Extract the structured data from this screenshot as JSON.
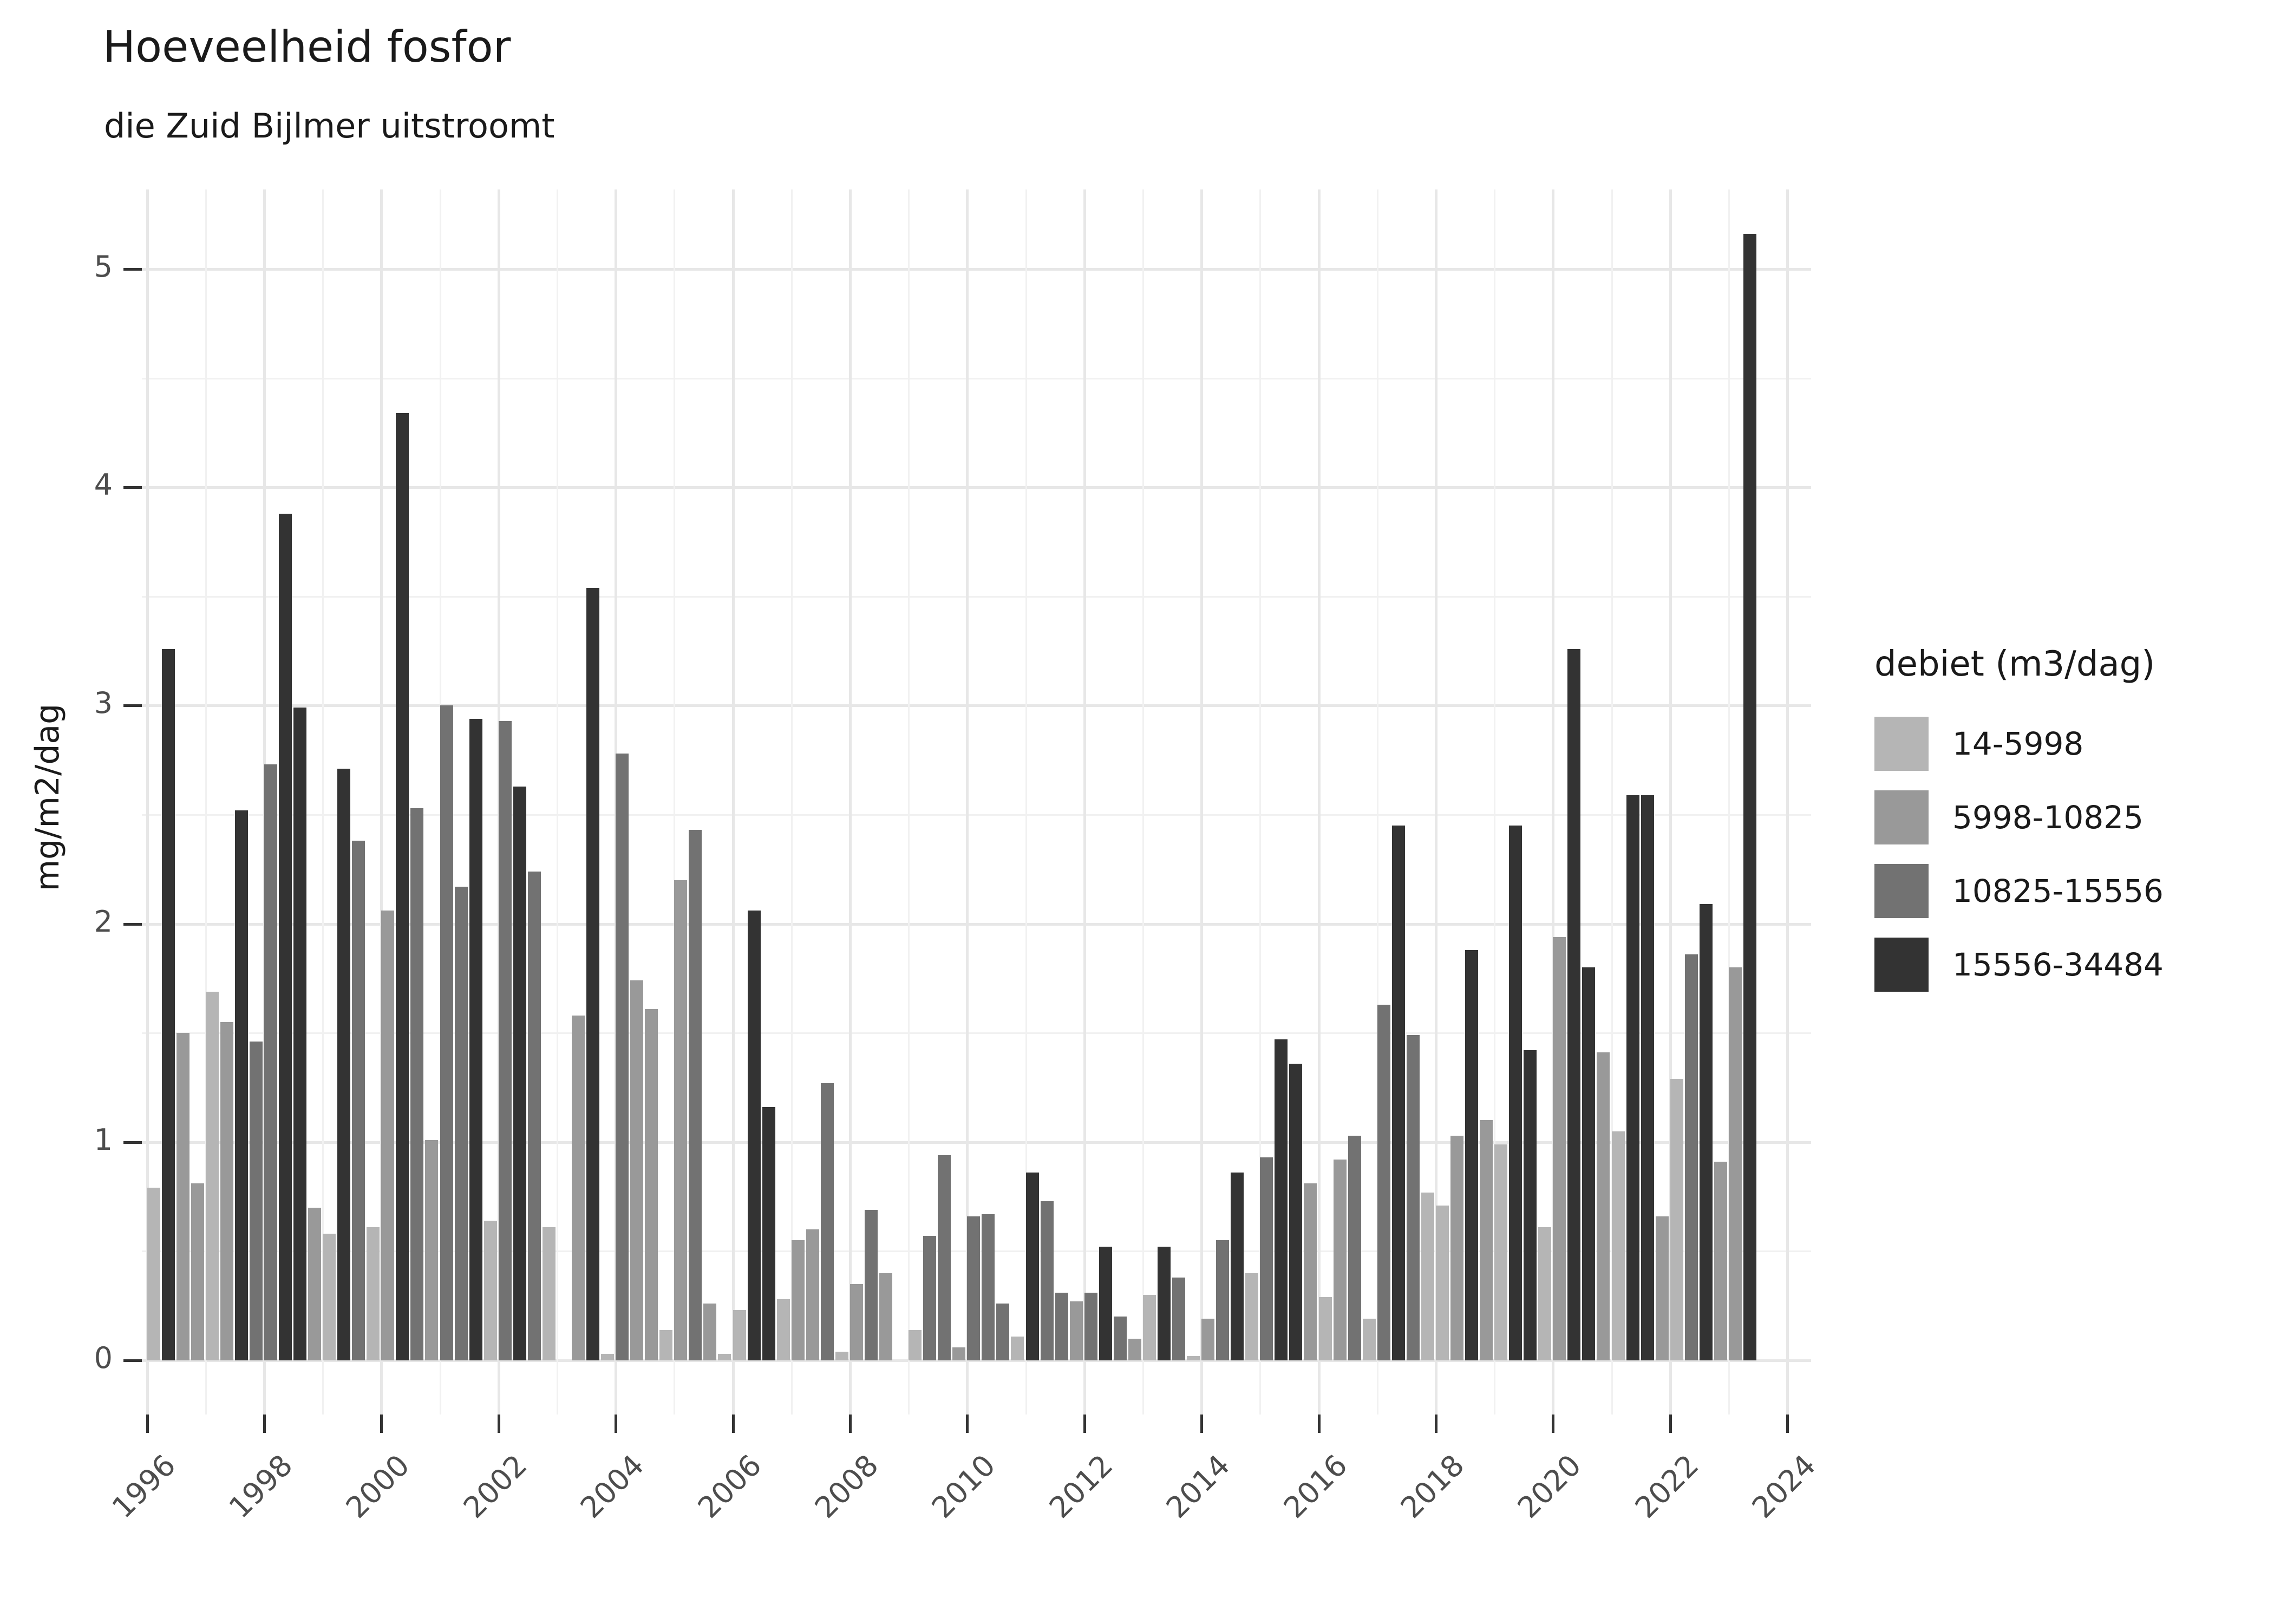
{
  "header": {
    "title": "Hoeveelheid fosfor",
    "subtitle": "die Zuid Bijlmer uitstroomt"
  },
  "legend": {
    "title": "debiet (m3/dag)",
    "items": [
      {
        "label": "14-5998",
        "code": "L"
      },
      {
        "label": "5998-10825",
        "code": "M"
      },
      {
        "label": "10825-15556",
        "code": "MD"
      },
      {
        "label": "15556-34484",
        "code": "D"
      }
    ]
  },
  "colors": {
    "L": "#b5b5b5",
    "M": "#999999",
    "MD": "#727272",
    "D": "#333333",
    "grid_major": "#e7e7e7",
    "grid_minor": "#f1f1f1",
    "axis_tick": "#333333",
    "axis_text": "#4d4d4d",
    "text": "#1a1a1a"
  },
  "chart_data": {
    "type": "bar",
    "title": "Hoeveelheid fosfor",
    "subtitle": "die Zuid Bijlmer uitstroomt",
    "xlabel": "",
    "ylabel": "mg/m2/dag",
    "ylim": [
      0,
      5.4
    ],
    "y_ticks": [
      0,
      1,
      2,
      3,
      4,
      5
    ],
    "y_minor": [
      0.5,
      1.5,
      2.5,
      3.5,
      4.5
    ],
    "x_ticks": [
      1996,
      1998,
      2000,
      2002,
      2004,
      2006,
      2008,
      2010,
      2012,
      2014,
      2016,
      2018,
      2020,
      2022,
      2024
    ],
    "x_minor": [
      1997,
      1999,
      2001,
      2003,
      2005,
      2007,
      2009,
      2011,
      2013,
      2015,
      2017,
      2019,
      2021,
      2023
    ],
    "legend_title": "debiet (m3/dag)",
    "legend_position": "right",
    "grid": true,
    "x_unit": "year-quarter",
    "categories": {
      "L": "14-5998",
      "M": "5998-10825",
      "MD": "10825-15556",
      "D": "15556-34484"
    },
    "bars": [
      {
        "y": 1996,
        "q": 1,
        "c": "L",
        "v": 0.79
      },
      {
        "y": 1996,
        "q": 2,
        "c": "D",
        "v": 3.26
      },
      {
        "y": 1996,
        "q": 3,
        "c": "M",
        "v": 1.5
      },
      {
        "y": 1996,
        "q": 4,
        "c": "M",
        "v": 0.81
      },
      {
        "y": 1997,
        "q": 1,
        "c": "L",
        "v": 1.69
      },
      {
        "y": 1997,
        "q": 2,
        "c": "M",
        "v": 1.55
      },
      {
        "y": 1997,
        "q": 3,
        "c": "D",
        "v": 2.52
      },
      {
        "y": 1997,
        "q": 4,
        "c": "MD",
        "v": 1.46
      },
      {
        "y": 1998,
        "q": 1,
        "c": "MD",
        "v": 2.73
      },
      {
        "y": 1998,
        "q": 2,
        "c": "D",
        "v": 3.88
      },
      {
        "y": 1998,
        "q": 3,
        "c": "D",
        "v": 2.99
      },
      {
        "y": 1998,
        "q": 4,
        "c": "M",
        "v": 0.7
      },
      {
        "y": 1999,
        "q": 1,
        "c": "L",
        "v": 0.58
      },
      {
        "y": 1999,
        "q": 2,
        "c": "D",
        "v": 2.71
      },
      {
        "y": 1999,
        "q": 3,
        "c": "MD",
        "v": 2.38
      },
      {
        "y": 1999,
        "q": 4,
        "c": "L",
        "v": 0.61
      },
      {
        "y": 2000,
        "q": 1,
        "c": "M",
        "v": 2.06
      },
      {
        "y": 2000,
        "q": 2,
        "c": "D",
        "v": 4.34
      },
      {
        "y": 2000,
        "q": 3,
        "c": "MD",
        "v": 2.53
      },
      {
        "y": 2000,
        "q": 4,
        "c": "M",
        "v": 1.01
      },
      {
        "y": 2001,
        "q": 1,
        "c": "MD",
        "v": 3.0
      },
      {
        "y": 2001,
        "q": 2,
        "c": "MD",
        "v": 2.17
      },
      {
        "y": 2001,
        "q": 3,
        "c": "D",
        "v": 2.94
      },
      {
        "y": 2001,
        "q": 4,
        "c": "L",
        "v": 0.64
      },
      {
        "y": 2002,
        "q": 1,
        "c": "MD",
        "v": 2.93
      },
      {
        "y": 2002,
        "q": 2,
        "c": "D",
        "v": 2.63
      },
      {
        "y": 2002,
        "q": 3,
        "c": "MD",
        "v": 2.24
      },
      {
        "y": 2002,
        "q": 4,
        "c": "L",
        "v": 0.61
      },
      {
        "y": 2003,
        "q": 2,
        "c": "M",
        "v": 1.58
      },
      {
        "y": 2003,
        "q": 3,
        "c": "D",
        "v": 3.54
      },
      {
        "y": 2003,
        "q": 4,
        "c": "L",
        "v": 0.03
      },
      {
        "y": 2004,
        "q": 1,
        "c": "MD",
        "v": 2.78
      },
      {
        "y": 2004,
        "q": 2,
        "c": "M",
        "v": 1.74
      },
      {
        "y": 2004,
        "q": 3,
        "c": "M",
        "v": 1.61
      },
      {
        "y": 2004,
        "q": 4,
        "c": "L",
        "v": 0.14
      },
      {
        "y": 2005,
        "q": 1,
        "c": "M",
        "v": 2.2
      },
      {
        "y": 2005,
        "q": 2,
        "c": "MD",
        "v": 2.43
      },
      {
        "y": 2005,
        "q": 3,
        "c": "M",
        "v": 0.26
      },
      {
        "y": 2005,
        "q": 4,
        "c": "L",
        "v": 0.03
      },
      {
        "y": 2006,
        "q": 1,
        "c": "L",
        "v": 0.23
      },
      {
        "y": 2006,
        "q": 2,
        "c": "D",
        "v": 2.06
      },
      {
        "y": 2006,
        "q": 3,
        "c": "D",
        "v": 1.16
      },
      {
        "y": 2006,
        "q": 4,
        "c": "L",
        "v": 0.28
      },
      {
        "y": 2007,
        "q": 1,
        "c": "M",
        "v": 0.55
      },
      {
        "y": 2007,
        "q": 2,
        "c": "M",
        "v": 0.6
      },
      {
        "y": 2007,
        "q": 3,
        "c": "MD",
        "v": 1.27
      },
      {
        "y": 2007,
        "q": 4,
        "c": "L",
        "v": 0.04
      },
      {
        "y": 2008,
        "q": 1,
        "c": "M",
        "v": 0.35
      },
      {
        "y": 2008,
        "q": 2,
        "c": "MD",
        "v": 0.69
      },
      {
        "y": 2008,
        "q": 3,
        "c": "M",
        "v": 0.4
      },
      {
        "y": 2009,
        "q": 1,
        "c": "L",
        "v": 0.14
      },
      {
        "y": 2009,
        "q": 2,
        "c": "MD",
        "v": 0.57
      },
      {
        "y": 2009,
        "q": 3,
        "c": "MD",
        "v": 0.94
      },
      {
        "y": 2009,
        "q": 4,
        "c": "M",
        "v": 0.06
      },
      {
        "y": 2010,
        "q": 1,
        "c": "MD",
        "v": 0.66
      },
      {
        "y": 2010,
        "q": 2,
        "c": "MD",
        "v": 0.67
      },
      {
        "y": 2010,
        "q": 3,
        "c": "MD",
        "v": 0.26
      },
      {
        "y": 2010,
        "q": 4,
        "c": "L",
        "v": 0.11
      },
      {
        "y": 2011,
        "q": 1,
        "c": "D",
        "v": 0.86
      },
      {
        "y": 2011,
        "q": 2,
        "c": "MD",
        "v": 0.73
      },
      {
        "y": 2011,
        "q": 3,
        "c": "MD",
        "v": 0.31
      },
      {
        "y": 2011,
        "q": 4,
        "c": "M",
        "v": 0.27
      },
      {
        "y": 2012,
        "q": 1,
        "c": "MD",
        "v": 0.31
      },
      {
        "y": 2012,
        "q": 2,
        "c": "D",
        "v": 0.52
      },
      {
        "y": 2012,
        "q": 3,
        "c": "MD",
        "v": 0.2
      },
      {
        "y": 2012,
        "q": 4,
        "c": "M",
        "v": 0.1
      },
      {
        "y": 2013,
        "q": 1,
        "c": "L",
        "v": 0.3
      },
      {
        "y": 2013,
        "q": 2,
        "c": "D",
        "v": 0.52
      },
      {
        "y": 2013,
        "q": 3,
        "c": "MD",
        "v": 0.38
      },
      {
        "y": 2013,
        "q": 4,
        "c": "L",
        "v": 0.02
      },
      {
        "y": 2014,
        "q": 1,
        "c": "M",
        "v": 0.19
      },
      {
        "y": 2014,
        "q": 2,
        "c": "MD",
        "v": 0.55
      },
      {
        "y": 2014,
        "q": 3,
        "c": "D",
        "v": 0.86
      },
      {
        "y": 2014,
        "q": 4,
        "c": "L",
        "v": 0.4
      },
      {
        "y": 2015,
        "q": 1,
        "c": "MD",
        "v": 0.93
      },
      {
        "y": 2015,
        "q": 2,
        "c": "D",
        "v": 1.47
      },
      {
        "y": 2015,
        "q": 3,
        "c": "D",
        "v": 1.36
      },
      {
        "y": 2015,
        "q": 4,
        "c": "M",
        "v": 0.81
      },
      {
        "y": 2016,
        "q": 1,
        "c": "L",
        "v": 0.29
      },
      {
        "y": 2016,
        "q": 2,
        "c": "M",
        "v": 0.92
      },
      {
        "y": 2016,
        "q": 3,
        "c": "MD",
        "v": 1.03
      },
      {
        "y": 2016,
        "q": 4,
        "c": "L",
        "v": 0.19
      },
      {
        "y": 2017,
        "q": 1,
        "c": "MD",
        "v": 1.63
      },
      {
        "y": 2017,
        "q": 2,
        "c": "D",
        "v": 2.45
      },
      {
        "y": 2017,
        "q": 3,
        "c": "MD",
        "v": 1.49
      },
      {
        "y": 2017,
        "q": 4,
        "c": "L",
        "v": 0.77
      },
      {
        "y": 2018,
        "q": 1,
        "c": "L",
        "v": 0.71
      },
      {
        "y": 2018,
        "q": 2,
        "c": "M",
        "v": 1.03
      },
      {
        "y": 2018,
        "q": 3,
        "c": "D",
        "v": 1.88
      },
      {
        "y": 2018,
        "q": 4,
        "c": "M",
        "v": 1.1
      },
      {
        "y": 2019,
        "q": 1,
        "c": "L",
        "v": 0.99
      },
      {
        "y": 2019,
        "q": 2,
        "c": "D",
        "v": 2.45
      },
      {
        "y": 2019,
        "q": 3,
        "c": "D",
        "v": 1.42
      },
      {
        "y": 2019,
        "q": 4,
        "c": "L",
        "v": 0.61
      },
      {
        "y": 2020,
        "q": 1,
        "c": "M",
        "v": 1.94
      },
      {
        "y": 2020,
        "q": 2,
        "c": "D",
        "v": 3.26
      },
      {
        "y": 2020,
        "q": 3,
        "c": "D",
        "v": 1.8
      },
      {
        "y": 2020,
        "q": 4,
        "c": "M",
        "v": 1.41
      },
      {
        "y": 2021,
        "q": 1,
        "c": "L",
        "v": 1.05
      },
      {
        "y": 2021,
        "q": 2,
        "c": "D",
        "v": 2.59
      },
      {
        "y": 2021,
        "q": 3,
        "c": "D",
        "v": 2.59
      },
      {
        "y": 2021,
        "q": 4,
        "c": "M",
        "v": 0.66
      },
      {
        "y": 2022,
        "q": 1,
        "c": "L",
        "v": 1.29
      },
      {
        "y": 2022,
        "q": 2,
        "c": "MD",
        "v": 1.86
      },
      {
        "y": 2022,
        "q": 3,
        "c": "D",
        "v": 2.09
      },
      {
        "y": 2022,
        "q": 4,
        "c": "M",
        "v": 0.91
      },
      {
        "y": 2023,
        "q": 1,
        "c": "M",
        "v": 1.8
      },
      {
        "y": 2023,
        "q": 2,
        "c": "D",
        "v": 5.16
      }
    ]
  }
}
